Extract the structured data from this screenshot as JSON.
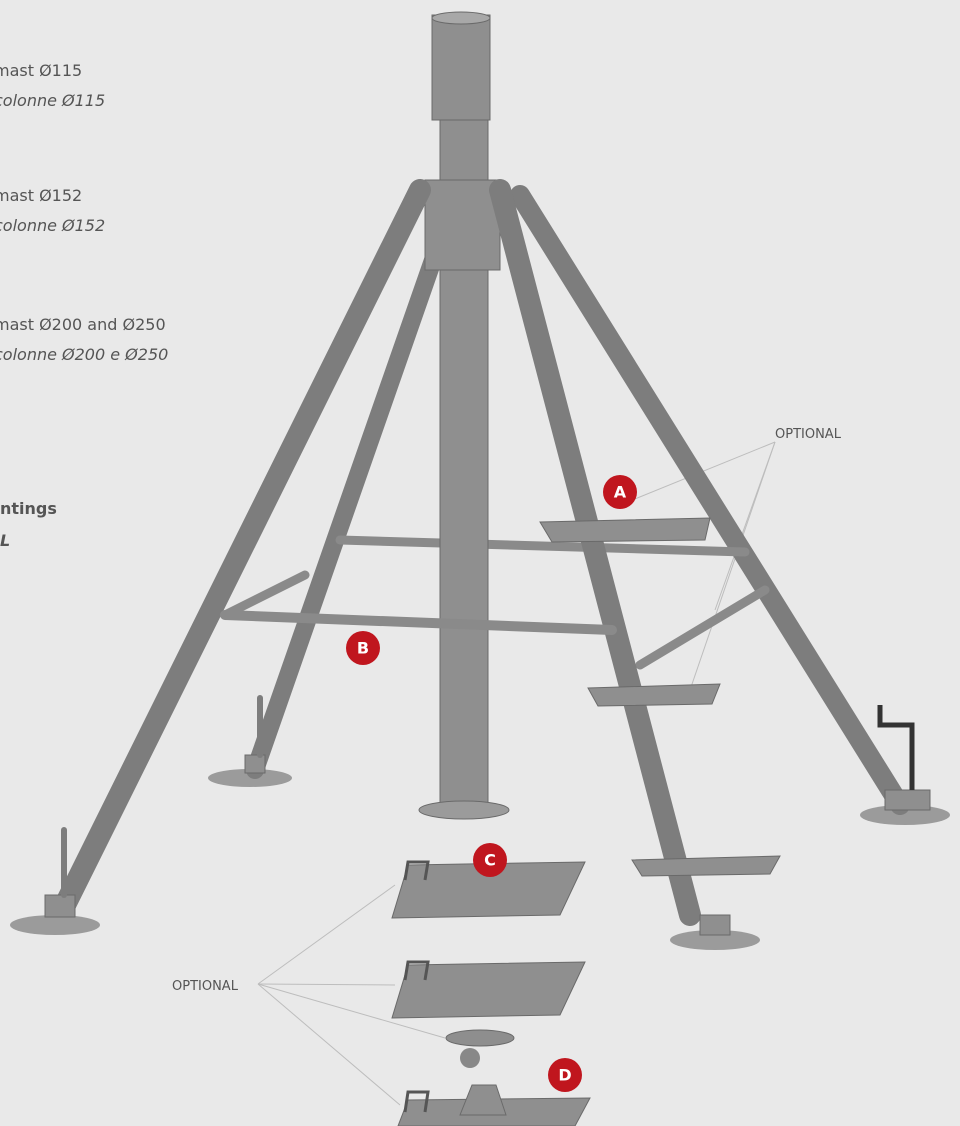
{
  "captions": [
    {
      "en": "mast Ø115",
      "it": "colonne Ø115"
    },
    {
      "en": "mast Ø152",
      "it": "colonne Ø152"
    },
    {
      "en": "mast Ø200 and Ø250",
      "it": "colonne Ø200 e Ø250"
    },
    {
      "en": "ntings",
      "it": "L"
    }
  ],
  "optional_labels": [
    "OPTIONAL",
    "OPTIONAL"
  ],
  "markers": [
    "A",
    "B",
    "C",
    "D"
  ]
}
